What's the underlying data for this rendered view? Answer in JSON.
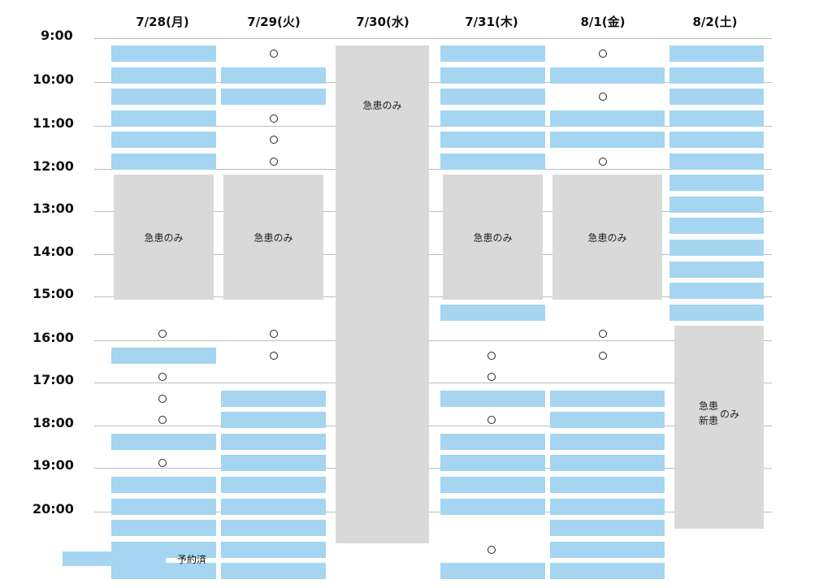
{
  "days": [
    {
      "label": "7/28(月)"
    },
    {
      "label": "7/29(火)"
    },
    {
      "label": "7/30(水)"
    },
    {
      "label": "7/31(木)"
    },
    {
      "label": "8/1(金)"
    },
    {
      "label": "8/2(土)"
    }
  ],
  "times": [
    "9:00",
    "10:00",
    "11:00",
    "12:00",
    "13:00",
    "14:00",
    "15:00",
    "16:00",
    "17:00",
    "18:00",
    "19:00",
    "20:00"
  ],
  "closed_labels": {
    "emergency_only": "急患のみ",
    "saturday_line1": "急患",
    "saturday_line2": "新患",
    "saturday_suffix": "のみ"
  },
  "legend": {
    "label": "予約済",
    "color": "#a5d5f0"
  },
  "colors": {
    "booked": "#a5d5f0",
    "closed": "#d9d9d9",
    "grid": "#bdbdbd"
  },
  "schedule": [
    {
      "day": 0,
      "booked": [
        0,
        1,
        2,
        3,
        4,
        5,
        14,
        18,
        20,
        21,
        22,
        23,
        24
      ],
      "open": [
        13,
        15,
        16,
        17,
        19
      ],
      "closed": [
        {
          "start": 6,
          "end": 11.8,
          "label": "emergency_only"
        }
      ]
    },
    {
      "day": 1,
      "booked": [
        1,
        2,
        16,
        17,
        18,
        19,
        20,
        21,
        22,
        23,
        24
      ],
      "open": [
        0,
        3,
        4,
        5,
        13,
        14
      ],
      "closed": [
        {
          "start": 6,
          "end": 11.8,
          "label": "emergency_only"
        }
      ]
    },
    {
      "day": 2,
      "booked": [],
      "open": [],
      "closed": [
        {
          "start": 0,
          "end": 23.1,
          "label": "emergency_only"
        }
      ]
    },
    {
      "day": 3,
      "booked": [
        0,
        1,
        2,
        3,
        4,
        5,
        12,
        16,
        18,
        19,
        20,
        21,
        24
      ],
      "open": [
        14,
        15,
        17,
        23
      ],
      "closed": [
        {
          "start": 6,
          "end": 11.8,
          "label": "emergency_only"
        }
      ]
    },
    {
      "day": 4,
      "booked": [
        1,
        3,
        4,
        16,
        17,
        18,
        19,
        20,
        21,
        22,
        23,
        24
      ],
      "open": [
        0,
        2,
        5,
        13,
        14
      ],
      "closed": [
        {
          "start": 6,
          "end": 11.8,
          "label": "emergency_only"
        }
      ]
    },
    {
      "day": 5,
      "booked": [
        0,
        1,
        2,
        3,
        4,
        5,
        6,
        7,
        8,
        9,
        10,
        11,
        12
      ],
      "open": [],
      "closed": [
        {
          "start": 13,
          "end": 22.4,
          "label": "saturday"
        }
      ]
    }
  ]
}
